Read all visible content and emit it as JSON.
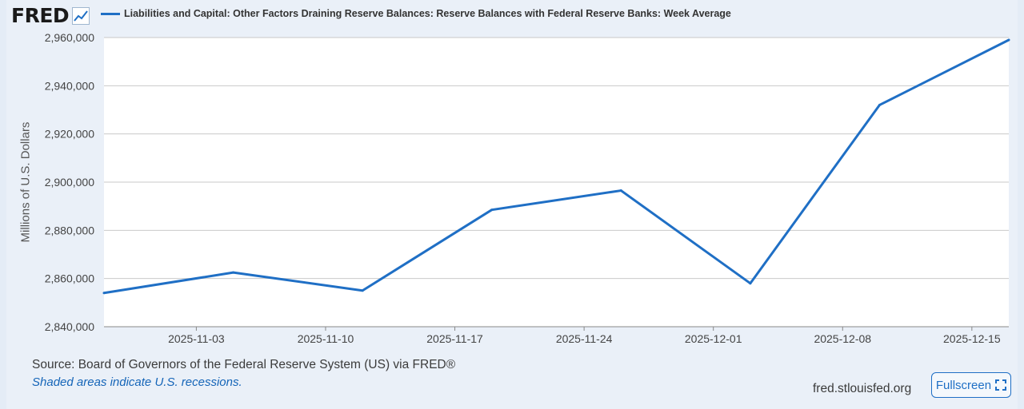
{
  "logo": {
    "text": "FRED",
    "icon": "chart-line-icon"
  },
  "chart_data": {
    "type": "line",
    "title": "",
    "series": [
      {
        "name": "Liabilities and Capital: Other Factors Draining Reserve Balances: Reserve Balances with Federal Reserve Banks: Week Average",
        "color": "#1f6fc5",
        "x": [
          "2025-10-29",
          "2025-11-05",
          "2025-11-12",
          "2025-11-19",
          "2025-11-26",
          "2025-12-03",
          "2025-12-10",
          "2025-12-17"
        ],
        "values": [
          2854000,
          2862500,
          2855000,
          2888500,
          2896500,
          2858000,
          2932000,
          2959000
        ]
      }
    ],
    "xlabel": "",
    "ylabel": "Millions of U.S. Dollars",
    "ylim": [
      2840000,
      2960000
    ],
    "xlim": [
      "2025-10-29",
      "2025-12-17"
    ],
    "y_ticks": [
      "2,840,000",
      "2,860,000",
      "2,880,000",
      "2,900,000",
      "2,920,000",
      "2,940,000",
      "2,960,000"
    ],
    "x_ticks": [
      "2025-11-03",
      "2025-11-10",
      "2025-11-17",
      "2025-11-24",
      "2025-12-01",
      "2025-12-08",
      "2025-12-15"
    ],
    "grid": true,
    "legend": "top-left"
  },
  "footer": {
    "source": "Source: Board of Governors of the Federal Reserve System (US) via FRED®",
    "note": "Shaded areas indicate U.S. recessions.",
    "site": "fred.stlouisfed.org",
    "fullscreen_label": "Fullscreen",
    "fullscreen_icon": "fullscreen-icon"
  }
}
